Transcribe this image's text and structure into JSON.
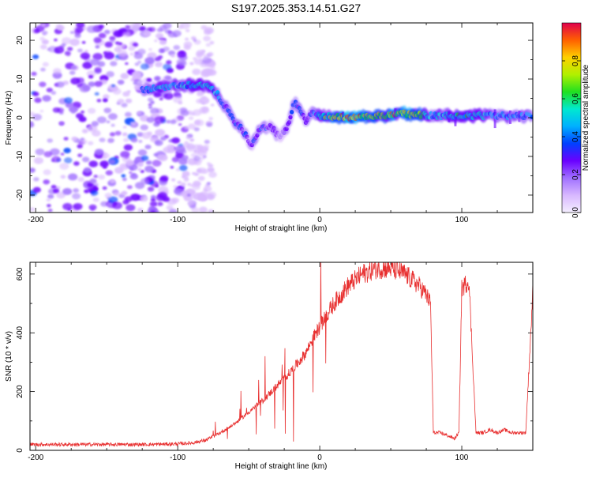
{
  "title": "S197.2025.353.14.51.G27",
  "colors": {
    "axis": "#000000",
    "snr_line": "#e83030",
    "colormap": [
      "#f4eeff",
      "#d8b8ff",
      "#a070ff",
      "#6a00ff",
      "#0040ff",
      "#00b0ff",
      "#00e8d0",
      "#20e020",
      "#b0f000",
      "#ffd000",
      "#ff6000",
      "#e0004c"
    ]
  },
  "chart_data": [
    {
      "type": "heatmap",
      "xlabel": "Height of straight line (km)",
      "ylabel": "Frequency (Hz)",
      "xlim": [
        -204,
        150
      ],
      "ylim": [
        -24.5,
        24.5
      ],
      "xticks": [
        -200,
        -100,
        0,
        100
      ],
      "yticks": [
        -20,
        -10,
        0,
        10,
        20
      ],
      "colorbar": {
        "label": "Normalized spectral amplitude",
        "range": [
          0,
          1
        ],
        "ticks": [
          0.0,
          0.2,
          0.4,
          0.6,
          0.8
        ]
      },
      "ridge": {
        "height_km": [
          -125,
          -110,
          -95,
          -80,
          -72,
          -65,
          -60,
          -55,
          -48,
          -42,
          -35,
          -28,
          -22,
          -18,
          -14,
          -10,
          -6,
          -2,
          0,
          20,
          40,
          60,
          80,
          100,
          120,
          140,
          150
        ],
        "frequency_hz": [
          7,
          8,
          8.5,
          8.5,
          6,
          2,
          -1,
          -3,
          -7,
          -3,
          -2,
          -5,
          -2,
          4,
          2,
          -1,
          1,
          1,
          0.5,
          0,
          0.5,
          1,
          0.5,
          0.5,
          0.5,
          0.5,
          0.5
        ],
        "amplitude": [
          0.4,
          0.5,
          0.5,
          0.55,
          0.45,
          0.35,
          0.4,
          0.35,
          0.3,
          0.35,
          0.3,
          0.25,
          0.3,
          0.4,
          0.35,
          0.3,
          0.35,
          0.4,
          0.6,
          0.95,
          0.75,
          0.85,
          0.5,
          0.6,
          0.5,
          0.45,
          0.45
        ]
      },
      "noise_region_km": [
        -204,
        -95
      ]
    },
    {
      "type": "line",
      "xlabel": "Height of straight line (km)",
      "ylabel": "SNR (10 * v/v)",
      "xlim": [
        -204,
        150
      ],
      "ylim": [
        0,
        640
      ],
      "xticks": [
        -200,
        -100,
        0,
        100
      ],
      "yticks": [
        0,
        200,
        400,
        600
      ],
      "series": [
        {
          "name": "SNR",
          "x": [
            -204,
            -180,
            -150,
            -120,
            -100,
            -90,
            -80,
            -70,
            -60,
            -50,
            -40,
            -30,
            -20,
            -10,
            -5,
            0,
            5,
            10,
            20,
            30,
            40,
            50,
            60,
            70,
            75,
            78,
            80,
            85,
            90,
            95,
            98,
            100,
            105,
            110,
            115,
            120,
            125,
            130,
            135,
            140,
            145,
            150
          ],
          "y": [
            20,
            20,
            20,
            20,
            22,
            25,
            35,
            60,
            90,
            130,
            170,
            220,
            270,
            330,
            380,
            420,
            460,
            500,
            560,
            600,
            620,
            620,
            600,
            560,
            530,
            500,
            60,
            60,
            50,
            40,
            60,
            550,
            580,
            60,
            60,
            70,
            60,
            70,
            60,
            60,
            60,
            540
          ]
        }
      ]
    }
  ]
}
